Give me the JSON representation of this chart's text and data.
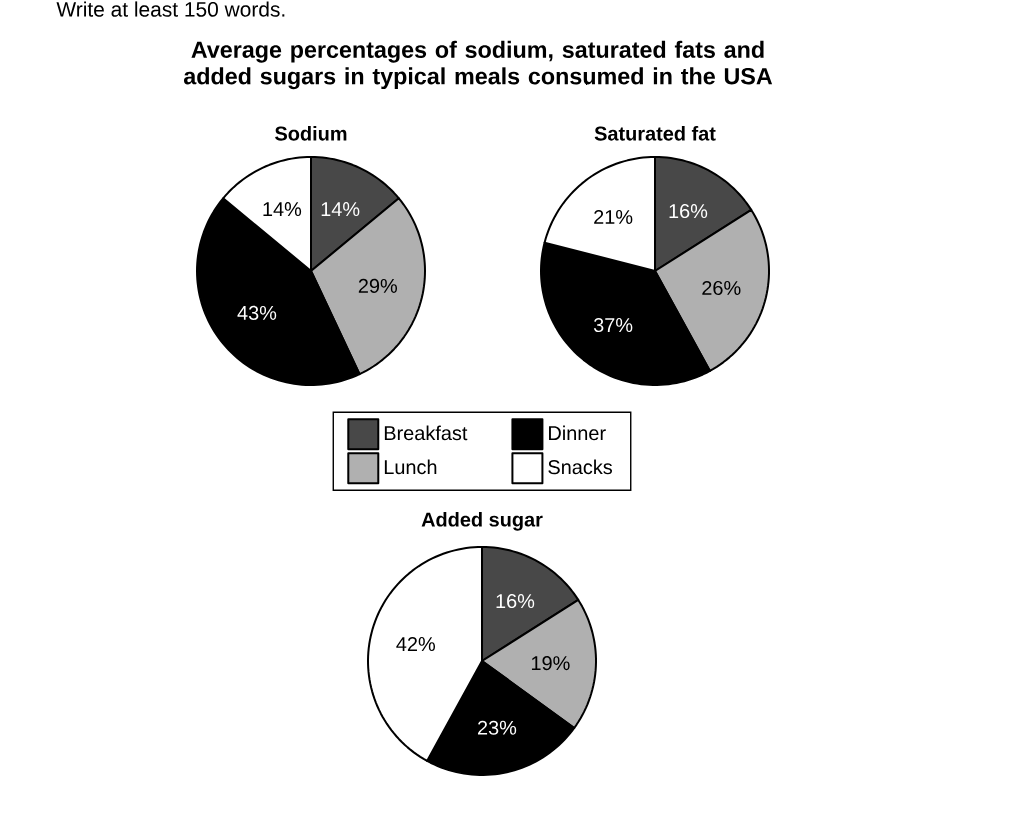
{
  "chart_data": [
    {
      "type": "other",
      "title": "Average percentages of sodium, saturated fats and added sugars in typical meals consumed in the USA",
      "annotations": [
        "Write at least 150 words."
      ]
    },
    {
      "type": "pie",
      "title": "Sodium",
      "categories": [
        null,
        null,
        null,
        null
      ],
      "values": [
        14,
        29,
        43,
        14
      ],
      "colors": [
        "#484848",
        "#b0b0b0",
        "#000000",
        "#ffffff"
      ],
      "value_labels": [
        "14%",
        "29%",
        "43%",
        "14%"
      ]
    },
    {
      "type": "pie",
      "title": "Saturated fat",
      "categories": [
        null,
        null,
        null,
        null
      ],
      "values": [
        16,
        26,
        37,
        21
      ],
      "colors": [
        "#484848",
        "#b0b0b0",
        "#000000",
        "#ffffff"
      ],
      "value_labels": [
        "16%",
        "26%",
        "37%",
        "21%"
      ]
    },
    {
      "type": "pie",
      "title": "Added sugar",
      "categories": [
        "Breakfast",
        "Lunch",
        "Dinner",
        "Snacks"
      ],
      "values": [
        16,
        19,
        23,
        42
      ],
      "colors": [
        "#484848",
        "#b0b0b0",
        "#000000",
        "#ffffff"
      ],
      "value_labels": [
        "16%",
        "19%",
        "23%",
        "42%"
      ],
      "legend": "top"
    }
  ]
}
